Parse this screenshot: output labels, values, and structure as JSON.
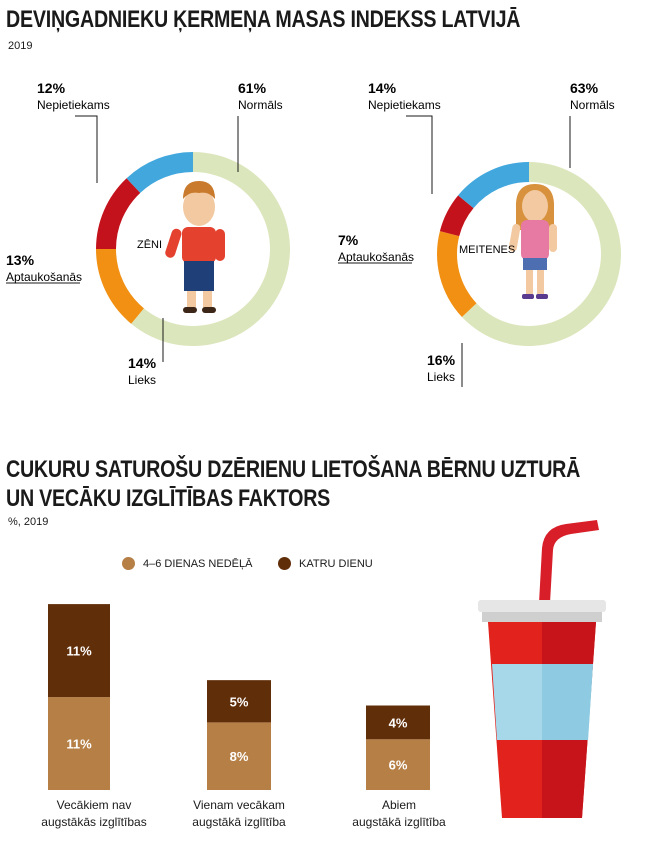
{
  "colors": {
    "normal": "#dce6bc",
    "underweight": "#41a7dd",
    "obese": "#c4121c",
    "overweight": "#f19012",
    "leader": "#1a1a1a",
    "bar_light": "#b57f46",
    "bar_dark": "#612e0a"
  },
  "chart_data": [
    {
      "type": "pie",
      "variant": "donut",
      "title": "DEVIŅGADNIEKU ĶERMEŅA MASAS INDEKSS LATVIJĀ",
      "subtitle": "2019",
      "center_label": "ZĒNI",
      "slices": [
        {
          "label": "Normāls",
          "value": 61,
          "text": "61%",
          "color_key": "normal"
        },
        {
          "label": "Lieks",
          "value": 14,
          "text": "14%",
          "color_key": "overweight"
        },
        {
          "label": "Aptaukošanās",
          "value": 13,
          "text": "13%",
          "color_key": "obese"
        },
        {
          "label": "Nepietiekams",
          "value": 12,
          "text": "12%",
          "color_key": "underweight"
        }
      ]
    },
    {
      "type": "pie",
      "variant": "donut",
      "center_label": "MEITENES",
      "slices": [
        {
          "label": "Normāls",
          "value": 63,
          "text": "63%",
          "color_key": "normal"
        },
        {
          "label": "Lieks",
          "value": 16,
          "text": "16%",
          "color_key": "overweight"
        },
        {
          "label": "Aptaukošanās",
          "value": 7,
          "text": "7%",
          "color_key": "obese"
        },
        {
          "label": "Nepietiekams",
          "value": 14,
          "text": "14%",
          "color_key": "underweight"
        }
      ]
    },
    {
      "type": "bar",
      "stacked": true,
      "title_line1": "CUKURU SATUROŠU DZĒRIENU LIETOŠANA BĒRNU UZTURĀ",
      "title_line2": "UN VECĀKU IZGLĪTĪBAS FAKTORS",
      "subtitle": "%, 2019",
      "categories_lines": [
        [
          "Vecākiem nav",
          "augstākās izglītības"
        ],
        [
          "Vienam vecākam",
          "augstākā izglītība"
        ],
        [
          "Abiem",
          "augstākā izglītība"
        ]
      ],
      "series": [
        {
          "name": "4–6 DIENAS NEDĒĻĀ",
          "values": [
            11,
            8,
            6
          ],
          "texts": [
            "11%",
            "8%",
            "6%"
          ],
          "color_key": "bar_light"
        },
        {
          "name": "KATRU DIENU",
          "values": [
            11,
            5,
            4
          ],
          "texts": [
            "11%",
            "5%",
            "4%"
          ],
          "color_key": "bar_dark"
        }
      ],
      "ylim": [
        0,
        22
      ]
    }
  ]
}
